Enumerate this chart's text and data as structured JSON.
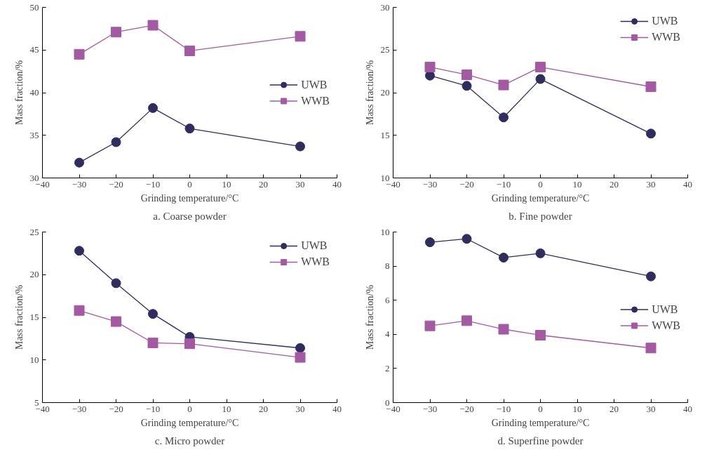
{
  "chart_data": [
    {
      "type": "line",
      "title": "a. Coarse powder",
      "xlabel": "Grinding temperature/°C",
      "ylabel": "Mass fraction/%",
      "x": [
        -30,
        -20,
        -10,
        0,
        30
      ],
      "xlim": [
        -40,
        40
      ],
      "xticks": [
        {
          "value": -40,
          "label": "−40"
        },
        {
          "value": -30,
          "label": "−30"
        },
        {
          "value": -20,
          "label": "−20"
        },
        {
          "value": -10,
          "label": "−10"
        },
        0,
        10,
        20,
        30,
        40
      ],
      "ylim": [
        30,
        50
      ],
      "yticks": [
        30,
        35,
        40,
        45,
        50
      ],
      "grid": false,
      "legend": "right",
      "series": [
        {
          "name": "UWB",
          "color": "#2e2d5e",
          "marker": "circle",
          "values": [
            31.8,
            34.2,
            38.2,
            35.8,
            33.7
          ]
        },
        {
          "name": "WWB",
          "color": "#a45aa3",
          "marker": "square",
          "values": [
            44.5,
            47.1,
            47.9,
            44.9,
            46.6
          ]
        }
      ]
    },
    {
      "type": "line",
      "title": "b. Fine powder",
      "xlabel": "Grinding temperature/°C",
      "ylabel": "Mass fraction/%",
      "x": [
        -30,
        -20,
        -10,
        0,
        30
      ],
      "xlim": [
        -40,
        40
      ],
      "xticks": [
        {
          "value": -40,
          "label": "−40"
        },
        {
          "value": -30,
          "label": "−30"
        },
        {
          "value": -20,
          "label": "−20"
        },
        {
          "value": -10,
          "label": "−10"
        },
        0,
        10,
        20,
        30,
        40
      ],
      "ylim": [
        10,
        30
      ],
      "yticks": [
        10,
        15,
        20,
        25,
        30
      ],
      "grid": false,
      "legend": "top right",
      "series": [
        {
          "name": "UWB",
          "color": "#2e2d5e",
          "marker": "circle",
          "values": [
            22.0,
            20.8,
            17.1,
            21.6,
            15.2
          ]
        },
        {
          "name": "WWB",
          "color": "#a45aa3",
          "marker": "square",
          "values": [
            23.0,
            22.1,
            20.9,
            23.0,
            20.7
          ]
        }
      ]
    },
    {
      "type": "line",
      "title": "c. Micro powder",
      "xlabel": "Grinding temperature/°C",
      "ylabel": "Mass fraction/%",
      "x": [
        -30,
        -20,
        -10,
        0,
        30
      ],
      "xlim": [
        -40,
        40
      ],
      "xticks": [
        {
          "value": -40,
          "label": "−40"
        },
        {
          "value": -30,
          "label": "−30"
        },
        {
          "value": -20,
          "label": "−20"
        },
        {
          "value": -10,
          "label": "−10"
        },
        0,
        10,
        20,
        30,
        40
      ],
      "ylim": [
        5,
        25
      ],
      "yticks": [
        5,
        10,
        15,
        20,
        25
      ],
      "grid": false,
      "legend": "top right",
      "series": [
        {
          "name": "UWB",
          "color": "#2e2d5e",
          "marker": "circle",
          "values": [
            22.8,
            19.0,
            15.4,
            12.7,
            11.4
          ]
        },
        {
          "name": "WWB",
          "color": "#a45aa3",
          "marker": "square",
          "values": [
            15.8,
            14.5,
            12.0,
            11.9,
            10.3
          ]
        }
      ]
    },
    {
      "type": "line",
      "title": "d. Superfine powder",
      "xlabel": "Grinding temperature/°C",
      "ylabel": "Mass fraction/%",
      "x": [
        -30,
        -20,
        -10,
        0,
        30
      ],
      "xlim": [
        -40,
        40
      ],
      "xticks": [
        {
          "value": -40,
          "label": "−40"
        },
        {
          "value": -30,
          "label": "−30"
        },
        {
          "value": -20,
          "label": "−20"
        },
        {
          "value": -10,
          "label": "−10"
        },
        0,
        10,
        20,
        30,
        40
      ],
      "ylim": [
        0,
        10
      ],
      "yticks": [
        0,
        2,
        4,
        6,
        8,
        10
      ],
      "grid": false,
      "legend": "right",
      "series": [
        {
          "name": "UWB",
          "color": "#2e2d5e",
          "marker": "circle",
          "values": [
            9.4,
            9.6,
            8.5,
            8.75,
            7.4
          ]
        },
        {
          "name": "WWB",
          "color": "#a45aa3",
          "marker": "square",
          "values": [
            4.5,
            4.8,
            4.3,
            3.95,
            3.2
          ]
        }
      ]
    }
  ]
}
